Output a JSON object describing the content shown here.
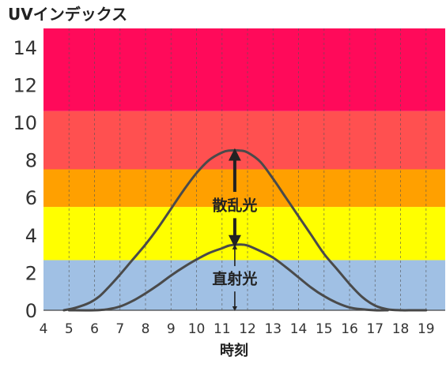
{
  "chart_data": {
    "type": "line",
    "title": "UVインデックス",
    "xlabel": "時刻",
    "ylabel": "",
    "xlim": [
      4,
      19.75
    ],
    "ylim": [
      0,
      15
    ],
    "x_ticks": [
      4,
      5,
      6,
      7,
      8,
      9,
      10,
      11,
      12,
      13,
      14,
      15,
      16,
      17,
      18,
      19
    ],
    "y_ticks": [
      0,
      2,
      4,
      6,
      8,
      10,
      12,
      14
    ],
    "grid": "vertical dashed",
    "bands": [
      {
        "from": 0,
        "to": 2.67,
        "color": "#a0c0e4"
      },
      {
        "from": 2.67,
        "to": 5.5,
        "color": "#ffff00"
      },
      {
        "from": 5.5,
        "to": 7.5,
        "color": "#ffa000"
      },
      {
        "from": 7.5,
        "to": 10.6,
        "color": "#ff5050"
      },
      {
        "from": 10.6,
        "to": 15,
        "color": "#ff0a5a"
      }
    ],
    "series": [
      {
        "name": "",
        "color": "#4a4a4a",
        "x": [
          4.8,
          5.3,
          5.8,
          6.2,
          6.6,
          7.0,
          7.5,
          8.0,
          8.5,
          9.0,
          9.5,
          10.0,
          10.5,
          11.0,
          11.3,
          11.7,
          12.0,
          12.5,
          13.0,
          13.5,
          14.0,
          14.5,
          15.0,
          15.5,
          16.0,
          16.5,
          17.0,
          17.5,
          18.0,
          18.5,
          19.0
        ],
        "values": [
          0.0,
          0.15,
          0.4,
          0.75,
          1.3,
          1.9,
          2.7,
          3.5,
          4.4,
          5.4,
          6.4,
          7.3,
          8.0,
          8.4,
          8.5,
          8.5,
          8.4,
          7.9,
          7.0,
          6.0,
          5.0,
          4.0,
          3.0,
          2.2,
          1.4,
          0.7,
          0.25,
          0.05,
          0.0,
          0.0,
          0.0
        ]
      },
      {
        "name": "",
        "color": "#4a4a4a",
        "x": [
          5.0,
          6.0,
          6.5,
          7.0,
          7.5,
          8.0,
          8.5,
          9.0,
          9.5,
          10.0,
          10.5,
          11.0,
          11.3,
          11.7,
          12.0,
          12.5,
          13.0,
          13.5,
          14.0,
          14.5,
          15.0,
          15.5,
          16.0,
          16.5,
          17.0,
          17.5
        ],
        "values": [
          0.0,
          0.0,
          0.05,
          0.2,
          0.5,
          0.9,
          1.35,
          1.85,
          2.3,
          2.7,
          3.05,
          3.3,
          3.45,
          3.5,
          3.45,
          3.15,
          2.8,
          2.3,
          1.75,
          1.2,
          0.75,
          0.4,
          0.15,
          0.05,
          0.0,
          0.0
        ]
      }
    ],
    "annotations": [
      {
        "text": "散乱光",
        "x": 11.5,
        "y": 5.6
      },
      {
        "text": "直射光",
        "x": 11.5,
        "y": 1.7
      }
    ]
  }
}
